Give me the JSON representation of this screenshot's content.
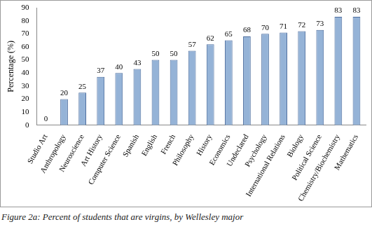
{
  "chart_data": {
    "type": "bar",
    "title": "Figure 2a: Percent of students that are virgins, by Wellesley major",
    "y_label": "Percentage (%)",
    "categories": [
      "Studio Art",
      "Anthropology",
      "Neuroscience",
      "Art History",
      "Computer Science",
      "Spanish",
      "English",
      "French",
      "Philosophy",
      "History",
      "Economics",
      "Undeclared",
      "Psychology",
      "International Relations",
      "Biology",
      "Political Science",
      "Chemistry/Biochemistry",
      "Mathematics"
    ],
    "values": [
      0,
      20,
      25,
      37,
      40,
      43,
      50,
      50,
      57,
      62,
      65,
      68,
      70,
      71,
      72,
      73,
      83,
      83
    ],
    "color": "#95b3d7",
    "ylim": [
      0,
      90
    ],
    "yticks": [
      0,
      10,
      20,
      30,
      40,
      50,
      60,
      70,
      80,
      90
    ],
    "grid": false,
    "data_labels": true
  }
}
